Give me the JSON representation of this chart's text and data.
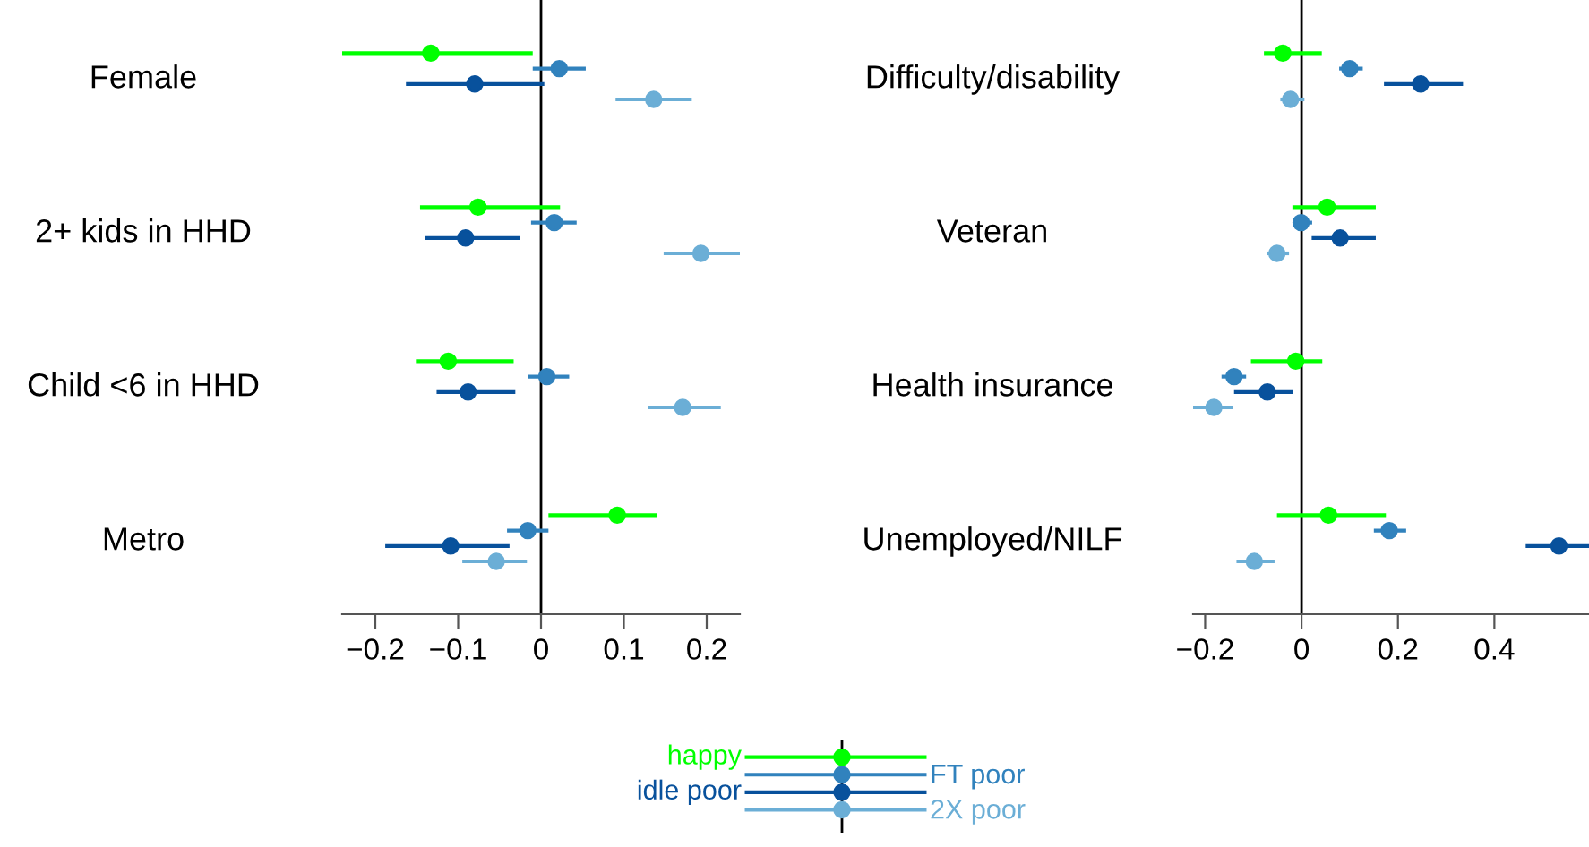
{
  "chart_data": [
    {
      "type": "scatter",
      "orientation": "horizontal",
      "categories": [
        "Female",
        "2+ kids in HHD",
        "Child <6 in HHD",
        "Metro"
      ],
      "xlim": [
        -0.24,
        0.24
      ],
      "xticks": [
        -0.2,
        -0.1,
        0,
        0.1,
        0.2
      ],
      "marker": "circle",
      "legend": "bottom",
      "grid": false,
      "ref_lines": [
        {
          "axis": "x",
          "value": 0,
          "color": "#000000"
        }
      ],
      "series": [
        {
          "name": "happy",
          "color": "#00ff00",
          "values": [
            -0.133,
            -0.076,
            -0.112,
            0.092
          ],
          "errors": [
            [
              -0.24,
              -0.01
            ],
            [
              -0.146,
              0.023
            ],
            [
              -0.151,
              -0.033
            ],
            [
              0.009,
              0.14
            ]
          ]
        },
        {
          "name": "FT poor",
          "color": "#3182bd",
          "values": [
            0.022,
            0.016,
            0.007,
            -0.016
          ],
          "errors": [
            [
              -0.01,
              0.054
            ],
            [
              -0.012,
              0.043
            ],
            [
              -0.016,
              0.034
            ],
            [
              -0.041,
              0.009
            ]
          ]
        },
        {
          "name": "idle poor",
          "color": "#08519c",
          "values": [
            -0.08,
            -0.091,
            -0.088,
            -0.109
          ],
          "errors": [
            [
              -0.163,
              0.004
            ],
            [
              -0.14,
              -0.025
            ],
            [
              -0.126,
              -0.031
            ],
            [
              -0.188,
              -0.038
            ]
          ]
        },
        {
          "name": "2X poor",
          "color": "#6baed6",
          "values": [
            0.136,
            0.193,
            0.171,
            -0.054
          ],
          "errors": [
            [
              0.09,
              0.182
            ],
            [
              0.148,
              0.24
            ],
            [
              0.129,
              0.217
            ],
            [
              -0.095,
              -0.017
            ]
          ]
        }
      ]
    },
    {
      "type": "scatter",
      "orientation": "horizontal",
      "categories": [
        "Difficulty/disability",
        "Veteran",
        "Health insurance",
        "Unemployed/NILF"
      ],
      "xlim": [
        -0.225,
        0.6
      ],
      "xticks": [
        -0.2,
        0,
        0.2,
        0.4
      ],
      "marker": "circle",
      "grid": false,
      "ref_lines": [
        {
          "axis": "x",
          "value": 0,
          "color": "#000000"
        }
      ],
      "series": [
        {
          "color": "#00ff00",
          "values": [
            -0.039,
            0.053,
            -0.012,
            0.056
          ],
          "errors": [
            [
              -0.078,
              0.042
            ],
            [
              -0.019,
              0.154
            ],
            [
              -0.105,
              0.043
            ],
            [
              -0.051,
              0.175
            ]
          ]
        },
        {
          "color": "#3182bd",
          "values": [
            0.1,
            -0.001,
            -0.14,
            0.182
          ],
          "errors": [
            [
              0.078,
              0.127
            ],
            [
              -0.017,
              0.022
            ],
            [
              -0.166,
              -0.115
            ],
            [
              0.15,
              0.217
            ]
          ]
        },
        {
          "color": "#08519c",
          "values": [
            0.247,
            0.08,
            -0.071,
            0.534
          ],
          "errors": [
            [
              0.171,
              0.335
            ],
            [
              0.021,
              0.154
            ],
            [
              -0.14,
              -0.017
            ],
            [
              0.465,
              0.6
            ]
          ]
        },
        {
          "color": "#6baed6",
          "values": [
            -0.023,
            -0.051,
            -0.182,
            -0.098
          ],
          "errors": [
            [
              -0.044,
              0.006
            ],
            [
              -0.071,
              -0.026
            ],
            [
              -0.225,
              -0.142
            ],
            [
              -0.135,
              -0.056
            ]
          ]
        }
      ]
    }
  ]
}
